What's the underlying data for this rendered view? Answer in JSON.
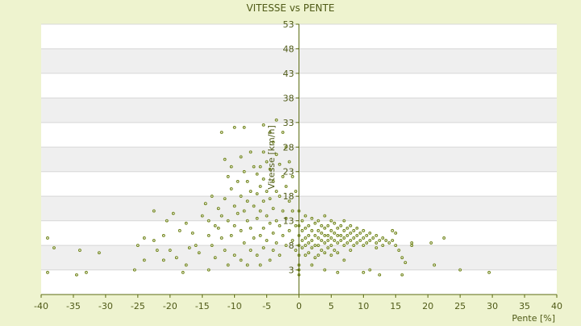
{
  "chart_data": {
    "type": "scatter",
    "title": "VITESSE vs PENTE",
    "xlabel": "Pente [%]",
    "ylabel": "Vitesse [km/h]",
    "xlim": [
      -40,
      40
    ],
    "ylim": [
      -2,
      53
    ],
    "x_ticks": [
      -40,
      -35,
      -30,
      -25,
      -20,
      -15,
      -10,
      -5,
      0,
      5,
      10,
      15,
      20,
      25,
      30,
      35,
      40
    ],
    "y_ticks": [
      3,
      8,
      13,
      18,
      23,
      28,
      33,
      38,
      43,
      48,
      53
    ],
    "y_ticks_note": "y tick labels drawn: 3,8,13,...,53; lowest gridline unlabeled",
    "grid": true,
    "colors": {
      "background": "#eef3cf",
      "band_light": "#ffffff",
      "band_dark": "#efefef",
      "axis": "#5b6b12",
      "marker": "#6a7f10",
      "text": "#4f5a17"
    },
    "series": [
      {
        "points": [
          [
            -39,
            9.5
          ],
          [
            -39,
            2.5
          ],
          [
            -38,
            7.5
          ],
          [
            -34,
            7
          ],
          [
            -34.5,
            2
          ],
          [
            -31,
            6.5
          ],
          [
            -33,
            2.5
          ],
          [
            -25.5,
            3
          ],
          [
            -25,
            8
          ],
          [
            -24,
            9.5
          ],
          [
            -24,
            5
          ],
          [
            -22.5,
            9
          ],
          [
            -22.5,
            15
          ],
          [
            -22,
            7
          ],
          [
            -21,
            10
          ],
          [
            -21,
            5
          ],
          [
            -20.5,
            13
          ],
          [
            -20,
            7
          ],
          [
            -19.5,
            14.5
          ],
          [
            -19,
            5.5
          ],
          [
            -18.5,
            11
          ],
          [
            -18,
            2.5
          ],
          [
            -17.5,
            4
          ],
          [
            -17.5,
            12.5
          ],
          [
            -17,
            7.5
          ],
          [
            -16.5,
            10.5
          ],
          [
            -16,
            8
          ],
          [
            -15.5,
            6.5
          ],
          [
            -15,
            14
          ],
          [
            -14.5,
            16.5
          ],
          [
            -14,
            13
          ],
          [
            -14,
            10
          ],
          [
            -14,
            3
          ],
          [
            -13.5,
            18
          ],
          [
            -13.5,
            8
          ],
          [
            -13,
            12
          ],
          [
            -13,
            5.5
          ],
          [
            -12.5,
            15.5
          ],
          [
            -12.5,
            11.5
          ],
          [
            -12,
            31
          ],
          [
            -12,
            14
          ],
          [
            -12,
            9.5
          ],
          [
            -11.5,
            25.5
          ],
          [
            -11.5,
            17.5
          ],
          [
            -11.5,
            7
          ],
          [
            -11,
            22
          ],
          [
            -11,
            13
          ],
          [
            -11,
            4
          ],
          [
            -10.5,
            24
          ],
          [
            -10.5,
            19.5
          ],
          [
            -10.5,
            10
          ],
          [
            -10,
            32
          ],
          [
            -10,
            16
          ],
          [
            -10,
            12
          ],
          [
            -10,
            6
          ],
          [
            -9.5,
            21
          ],
          [
            -9.5,
            14.5
          ],
          [
            -9,
            26
          ],
          [
            -9,
            18
          ],
          [
            -9,
            11
          ],
          [
            -9,
            5
          ],
          [
            -8.5,
            32
          ],
          [
            -8.5,
            23
          ],
          [
            -8.5,
            15
          ],
          [
            -8.5,
            8.5
          ],
          [
            -8,
            21
          ],
          [
            -8,
            17
          ],
          [
            -8,
            13
          ],
          [
            -8,
            4
          ],
          [
            -7.5,
            27
          ],
          [
            -7.5,
            19
          ],
          [
            -7.5,
            11.5
          ],
          [
            -7.5,
            7
          ],
          [
            -7,
            24
          ],
          [
            -7,
            16
          ],
          [
            -7,
            9.5
          ],
          [
            -6.5,
            22.5
          ],
          [
            -6.5,
            18.5
          ],
          [
            -6.5,
            13.5
          ],
          [
            -6.5,
            6
          ],
          [
            -6,
            24
          ],
          [
            -6,
            20
          ],
          [
            -6,
            15
          ],
          [
            -6,
            10
          ],
          [
            -6,
            4
          ],
          [
            -5.5,
            32.5
          ],
          [
            -5.5,
            27
          ],
          [
            -5.5,
            21.5
          ],
          [
            -5.5,
            17
          ],
          [
            -5.5,
            11.5
          ],
          [
            -5.5,
            7.5
          ],
          [
            -5,
            25
          ],
          [
            -5,
            19
          ],
          [
            -5,
            14
          ],
          [
            -5,
            9
          ],
          [
            -4.5,
            31
          ],
          [
            -4.5,
            23.5
          ],
          [
            -4.5,
            17.5
          ],
          [
            -4.5,
            12.5
          ],
          [
            -4.5,
            5
          ],
          [
            -4,
            29
          ],
          [
            -4,
            21
          ],
          [
            -4,
            15.5
          ],
          [
            -4,
            10.5
          ],
          [
            -4,
            7
          ],
          [
            -3.5,
            33.5
          ],
          [
            -3.5,
            26.5
          ],
          [
            -3.5,
            19
          ],
          [
            -3.5,
            13
          ],
          [
            -3.5,
            8.5
          ],
          [
            -3,
            24.5
          ],
          [
            -3,
            18
          ],
          [
            -3,
            12
          ],
          [
            -3,
            6
          ],
          [
            -2.5,
            31
          ],
          [
            -2.5,
            22
          ],
          [
            -2.5,
            15
          ],
          [
            -2.5,
            10
          ],
          [
            -2,
            28
          ],
          [
            -2,
            20
          ],
          [
            -2,
            13.5
          ],
          [
            -2,
            8
          ],
          [
            -1.5,
            25
          ],
          [
            -1.5,
            17
          ],
          [
            -1.5,
            11
          ],
          [
            -1,
            22
          ],
          [
            -1,
            15
          ],
          [
            -1,
            9
          ],
          [
            -0.5,
            19
          ],
          [
            -0.5,
            12
          ],
          [
            -0.5,
            7
          ],
          [
            0,
            15
          ],
          [
            0,
            12
          ],
          [
            0,
            10
          ],
          [
            0,
            8
          ],
          [
            0,
            6
          ],
          [
            0,
            4
          ],
          [
            0,
            3
          ],
          [
            0,
            2
          ],
          [
            0.5,
            13
          ],
          [
            0.5,
            11
          ],
          [
            0.5,
            9
          ],
          [
            0.5,
            7.5
          ],
          [
            1,
            14
          ],
          [
            1,
            11.5
          ],
          [
            1,
            9.5
          ],
          [
            1,
            8
          ],
          [
            1,
            6
          ],
          [
            1.5,
            12
          ],
          [
            1.5,
            10
          ],
          [
            1.5,
            8.5
          ],
          [
            1.5,
            6.5
          ],
          [
            2,
            13.5
          ],
          [
            2,
            11
          ],
          [
            2,
            9
          ],
          [
            2,
            7.5
          ],
          [
            2,
            4
          ],
          [
            2.5,
            12.5
          ],
          [
            2.5,
            10
          ],
          [
            2.5,
            8
          ],
          [
            2.5,
            5.5
          ],
          [
            3,
            13
          ],
          [
            3,
            11
          ],
          [
            3,
            9.5
          ],
          [
            3,
            8
          ],
          [
            3,
            6
          ],
          [
            3.5,
            12
          ],
          [
            3.5,
            10.5
          ],
          [
            3.5,
            9
          ],
          [
            3.5,
            7
          ],
          [
            4,
            14
          ],
          [
            4,
            11.5
          ],
          [
            4,
            10
          ],
          [
            4,
            8.5
          ],
          [
            4,
            6.5
          ],
          [
            4,
            3
          ],
          [
            4.5,
            12
          ],
          [
            4.5,
            10
          ],
          [
            4.5,
            9
          ],
          [
            4.5,
            7.5
          ],
          [
            5,
            13
          ],
          [
            5,
            11
          ],
          [
            5,
            9.5
          ],
          [
            5,
            8
          ],
          [
            5,
            6
          ],
          [
            5.5,
            12.5
          ],
          [
            5.5,
            10.5
          ],
          [
            5.5,
            9
          ],
          [
            5.5,
            7
          ],
          [
            6,
            11.5
          ],
          [
            6,
            10
          ],
          [
            6,
            8.5
          ],
          [
            6,
            6.5
          ],
          [
            6,
            2.5
          ],
          [
            6.5,
            12
          ],
          [
            6.5,
            10
          ],
          [
            6.5,
            9
          ],
          [
            7,
            13
          ],
          [
            7,
            11
          ],
          [
            7,
            9.5
          ],
          [
            7,
            8
          ],
          [
            7,
            5
          ],
          [
            7.5,
            11.5
          ],
          [
            7.5,
            10
          ],
          [
            7.5,
            8.5
          ],
          [
            8,
            12
          ],
          [
            8,
            10.5
          ],
          [
            8,
            9
          ],
          [
            8,
            7
          ],
          [
            8.5,
            11
          ],
          [
            8.5,
            9.5
          ],
          [
            8.5,
            8
          ],
          [
            9,
            11.5
          ],
          [
            9,
            10
          ],
          [
            9,
            8.5
          ],
          [
            9.5,
            10.5
          ],
          [
            9.5,
            9
          ],
          [
            10,
            11
          ],
          [
            10,
            9.5
          ],
          [
            10,
            8
          ],
          [
            10,
            2.5
          ],
          [
            10.5,
            10
          ],
          [
            10.5,
            8.5
          ],
          [
            11,
            10.5
          ],
          [
            11,
            9
          ],
          [
            11,
            3
          ],
          [
            11.5,
            9.5
          ],
          [
            12,
            10
          ],
          [
            12,
            8.5
          ],
          [
            12,
            7.5
          ],
          [
            12.5,
            9
          ],
          [
            12.5,
            2
          ],
          [
            13,
            9.5
          ],
          [
            13,
            8
          ],
          [
            13.5,
            9
          ],
          [
            14,
            8.5
          ],
          [
            14.5,
            9
          ],
          [
            14.5,
            11
          ],
          [
            15,
            10.5
          ],
          [
            15,
            8
          ],
          [
            15.5,
            7
          ],
          [
            16,
            5.5
          ],
          [
            16,
            2
          ],
          [
            16.5,
            4.5
          ],
          [
            17.5,
            8.5
          ],
          [
            17.5,
            8
          ],
          [
            20.5,
            8.5
          ],
          [
            21,
            4
          ],
          [
            22.5,
            9.5
          ],
          [
            25,
            3
          ],
          [
            29.5,
            2.5
          ]
        ]
      }
    ]
  }
}
